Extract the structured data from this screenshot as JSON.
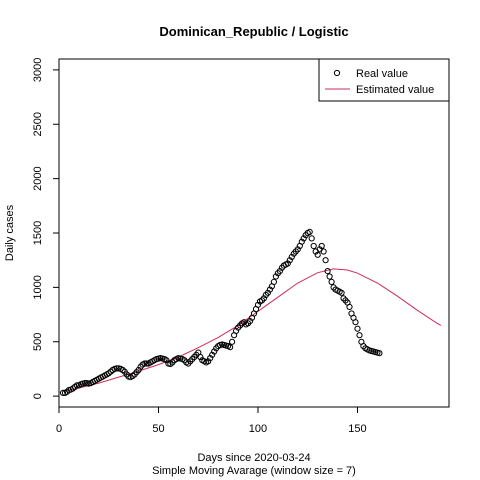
{
  "chart_data": {
    "type": "scatter",
    "title": "Dominican_Republic / Logistic",
    "xlabel": "Days since 2020-03-24",
    "xlabel2": "Simple Moving Avarage (window size = 7)",
    "ylabel": "Daily cases",
    "xlim": [
      0,
      196
    ],
    "ylim": [
      -100,
      3100
    ],
    "x_ticks": [
      0,
      50,
      100,
      150
    ],
    "y_ticks": [
      0,
      500,
      1000,
      1500,
      2000,
      2500,
      3000
    ],
    "grid": false,
    "legend_position": "top-right",
    "colors": {
      "points": "#000000",
      "estimated": "#cd2d59"
    },
    "legend": [
      {
        "label": "Real value",
        "kind": "point"
      },
      {
        "label": "Estimated value",
        "kind": "line"
      }
    ],
    "series": [
      {
        "name": "Real value",
        "kind": "points",
        "x": [
          2,
          3,
          4,
          5,
          6,
          7,
          8,
          9,
          10,
          11,
          12,
          13,
          14,
          15,
          16,
          17,
          18,
          19,
          20,
          21,
          22,
          23,
          24,
          25,
          26,
          27,
          28,
          29,
          30,
          31,
          32,
          33,
          34,
          35,
          36,
          37,
          38,
          39,
          40,
          41,
          42,
          43,
          44,
          45,
          46,
          47,
          48,
          49,
          50,
          51,
          52,
          53,
          54,
          55,
          56,
          57,
          58,
          59,
          60,
          61,
          62,
          63,
          64,
          65,
          66,
          67,
          68,
          69,
          70,
          71,
          72,
          73,
          74,
          75,
          76,
          77,
          78,
          79,
          80,
          81,
          82,
          83,
          84,
          85,
          86,
          87,
          88,
          89,
          90,
          91,
          92,
          93,
          94,
          95,
          96,
          97,
          98,
          99,
          100,
          101,
          102,
          103,
          104,
          105,
          106,
          107,
          108,
          109,
          110,
          111,
          112,
          113,
          114,
          115,
          116,
          117,
          118,
          119,
          120,
          121,
          122,
          123,
          124,
          125,
          126,
          127,
          128,
          129,
          130,
          131,
          132,
          133,
          134,
          135,
          136,
          137,
          138,
          139,
          140,
          141,
          142,
          143,
          144,
          145,
          146,
          147,
          148,
          149,
          150,
          151,
          152,
          153,
          154,
          155,
          156,
          157,
          158,
          159,
          160,
          161
        ],
        "y": [
          30,
          30,
          40,
          55,
          60,
          70,
          85,
          100,
          100,
          110,
          115,
          120,
          120,
          115,
          120,
          130,
          140,
          150,
          160,
          170,
          180,
          190,
          200,
          210,
          225,
          240,
          250,
          255,
          255,
          250,
          240,
          225,
          200,
          180,
          175,
          185,
          200,
          220,
          240,
          270,
          290,
          300,
          300,
          300,
          310,
          320,
          330,
          340,
          345,
          350,
          345,
          340,
          330,
          300,
          295,
          310,
          330,
          340,
          350,
          345,
          340,
          330,
          310,
          300,
          320,
          340,
          360,
          380,
          400,
          360,
          330,
          320,
          310,
          320,
          350,
          380,
          410,
          440,
          460,
          470,
          475,
          470,
          465,
          460,
          450,
          500,
          560,
          600,
          630,
          650,
          670,
          680,
          660,
          670,
          690,
          720,
          760,
          800,
          840,
          870,
          880,
          900,
          930,
          950,
          980,
          1010,
          1050,
          1100,
          1130,
          1150,
          1180,
          1200,
          1210,
          1220,
          1250,
          1280,
          1310,
          1330,
          1350,
          1380,
          1420,
          1450,
          1480,
          1500,
          1510,
          1450,
          1380,
          1330,
          1300,
          1350,
          1380,
          1330,
          1250,
          1150,
          1100,
          1050,
          1000,
          980,
          970,
          960,
          950,
          900,
          880,
          860,
          820,
          760,
          720,
          680,
          620,
          560,
          500,
          460,
          440,
          430,
          420,
          415,
          410,
          405,
          400,
          395
        ],
        "keep": [
          1,
          1,
          1,
          1,
          1,
          1,
          1,
          1,
          1,
          1,
          1,
          1,
          1,
          1,
          1,
          1,
          1,
          1,
          1,
          1,
          1,
          1,
          1,
          1,
          1,
          1,
          1,
          1,
          1,
          1,
          1,
          1,
          1,
          1,
          1,
          1,
          1,
          1,
          1,
          1,
          1,
          1,
          1,
          1,
          1,
          1,
          1,
          1,
          1,
          1,
          1,
          1,
          1,
          1,
          1,
          1,
          1,
          1,
          1,
          1,
          1,
          1,
          1,
          1,
          1,
          1,
          1,
          1,
          1,
          1,
          1,
          1,
          1,
          1,
          1,
          1,
          1,
          1,
          1,
          1,
          1,
          1,
          1,
          1,
          1,
          1,
          1,
          1,
          1,
          1,
          1,
          1,
          1,
          1,
          1,
          1,
          1,
          1,
          1,
          1,
          1,
          1,
          1,
          1,
          1,
          1,
          1,
          1,
          1,
          1,
          1,
          1,
          1,
          1,
          1,
          1,
          1,
          1,
          1,
          1,
          1,
          1,
          1,
          1,
          1,
          1,
          1,
          1,
          1,
          1,
          1,
          1,
          1,
          1,
          1,
          1,
          1,
          1,
          1,
          1,
          1,
          1,
          1,
          1,
          1,
          1,
          1,
          1,
          1,
          1,
          1,
          1,
          1,
          1,
          1,
          1,
          1,
          1,
          1,
          1
        ]
      },
      {
        "name": "Estimated value",
        "kind": "line",
        "x": [
          2,
          10,
          20,
          30,
          40,
          50,
          60,
          70,
          80,
          90,
          100,
          110,
          120,
          130,
          138,
          145,
          150,
          160,
          170,
          180,
          190,
          192
        ],
        "y": [
          45,
          75,
          120,
          175,
          230,
          290,
          360,
          445,
          540,
          650,
          780,
          910,
          1040,
          1135,
          1170,
          1160,
          1130,
          1040,
          920,
          790,
          670,
          650
        ]
      }
    ]
  }
}
